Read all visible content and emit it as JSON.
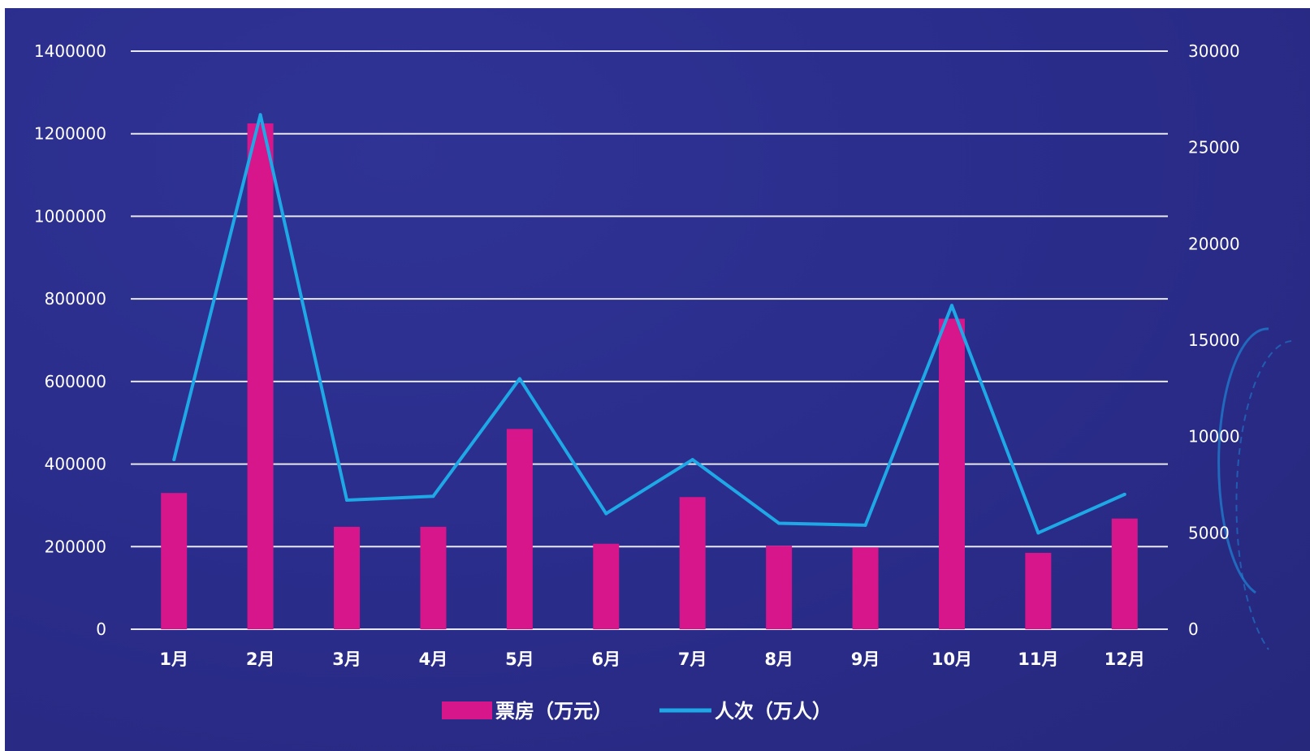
{
  "chart_data": {
    "type": "bar+line",
    "categories": [
      "1月",
      "2月",
      "3月",
      "4月",
      "5月",
      "6月",
      "7月",
      "8月",
      "9月",
      "10月",
      "11月",
      "12月"
    ],
    "series": [
      {
        "name": "票房（万元）",
        "type": "bar",
        "axis": "left",
        "color": "#d6168a",
        "values": [
          330000,
          1225000,
          248000,
          248000,
          485000,
          207000,
          320000,
          202000,
          198000,
          752000,
          185000,
          268000
        ]
      },
      {
        "name": "人次（万人）",
        "type": "line",
        "axis": "right",
        "color": "#1ea8e6",
        "values": [
          8800,
          26700,
          6700,
          6900,
          13000,
          6000,
          8800,
          5500,
          5400,
          16800,
          5000,
          7000
        ]
      }
    ],
    "y_left": {
      "min": 0,
      "max": 1400000,
      "ticks": [
        "0",
        "200000",
        "400000",
        "600000",
        "800000",
        "1000000",
        "1200000",
        "1400000"
      ]
    },
    "y_right": {
      "min": 0,
      "max": 30000,
      "ticks": [
        "0",
        "5000",
        "10000",
        "15000",
        "20000",
        "25000",
        "30000"
      ]
    },
    "grid": true,
    "legend_position": "bottom-center",
    "colors": {
      "background": "#2a2c8a",
      "grid": "#e8e8f0",
      "text": "#ffffff"
    }
  }
}
